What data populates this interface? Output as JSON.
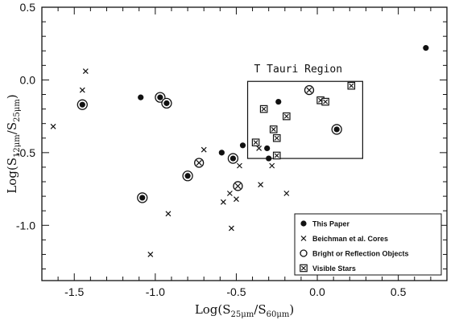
{
  "chart_data": {
    "type": "scatter",
    "title": "",
    "xlabel": "Log(S_25μm/S_60μm)",
    "ylabel": "Log(S_12μm/S_25μm)",
    "xlabel_parts": {
      "pre": "Log(S",
      "sub1": "25μm",
      "mid": "/S",
      "sub2": "60μm",
      "post": ")"
    },
    "ylabel_parts": {
      "pre": "Log(S",
      "sub1": "12μm",
      "mid": "/S",
      "sub2": "25μm",
      "post": ")"
    },
    "xlim": [
      -1.7,
      0.8
    ],
    "ylim": [
      -1.38,
      0.5
    ],
    "xticks": [
      {
        "value": -1.5,
        "label": "-1.5"
      },
      {
        "value": -1.0,
        "label": "-1.0"
      },
      {
        "value": -0.5,
        "label": "-0.5"
      },
      {
        "value": 0.0,
        "label": "0.0"
      },
      {
        "value": 0.5,
        "label": "0.5"
      }
    ],
    "yticks": [
      {
        "value": 0.5,
        "label": "0.5"
      },
      {
        "value": 0.0,
        "label": "0.0"
      },
      {
        "value": -0.5,
        "label": "-0.5"
      },
      {
        "value": -1.0,
        "label": "-1.0"
      }
    ],
    "grid": false,
    "legend_position": "bottom-right",
    "annotation": {
      "label": "T Tauri Region",
      "box": {
        "x0": -0.43,
        "x1": 0.28,
        "y0": -0.54,
        "y1": -0.01
      }
    },
    "series": [
      {
        "name": "This Paper",
        "marker": "filled-circle",
        "points": [
          {
            "x": 0.67,
            "y": 0.22,
            "ringed": false
          },
          {
            "x": -1.09,
            "y": -0.12,
            "ringed": false
          },
          {
            "x": -0.59,
            "y": -0.5,
            "ringed": false
          },
          {
            "x": -0.46,
            "y": -0.45,
            "ringed": false
          },
          {
            "x": -0.31,
            "y": -0.47,
            "ringed": false
          },
          {
            "x": -0.3,
            "y": -0.54,
            "ringed": false
          },
          {
            "x": -0.24,
            "y": -0.15,
            "ringed": false
          },
          {
            "x": -1.45,
            "y": -0.17,
            "ringed": true
          },
          {
            "x": -0.97,
            "y": -0.12,
            "ringed": true
          },
          {
            "x": -0.93,
            "y": -0.16,
            "ringed": true
          },
          {
            "x": -0.8,
            "y": -0.66,
            "ringed": true
          },
          {
            "x": -0.52,
            "y": -0.54,
            "ringed": true
          },
          {
            "x": -1.08,
            "y": -0.81,
            "ringed": true
          },
          {
            "x": 0.12,
            "y": -0.34,
            "ringed": true
          }
        ]
      },
      {
        "name": "Beichman et al. Cores",
        "marker": "x",
        "points": [
          {
            "x": -1.43,
            "y": 0.06
          },
          {
            "x": -1.45,
            "y": -0.07
          },
          {
            "x": -1.63,
            "y": -0.32
          },
          {
            "x": -0.7,
            "y": -0.48
          },
          {
            "x": -0.48,
            "y": -0.59
          },
          {
            "x": -0.58,
            "y": -0.84
          },
          {
            "x": -0.54,
            "y": -0.78
          },
          {
            "x": -0.5,
            "y": -0.82
          },
          {
            "x": -0.28,
            "y": -0.59
          },
          {
            "x": -0.35,
            "y": -0.72
          },
          {
            "x": -0.19,
            "y": -0.78
          },
          {
            "x": -0.92,
            "y": -0.92
          },
          {
            "x": -0.53,
            "y": -1.02
          },
          {
            "x": -1.03,
            "y": -1.2
          },
          {
            "x": -0.36,
            "y": -0.47
          }
        ]
      },
      {
        "name": "Bright or Reflection Objects",
        "marker": "open-circle-x",
        "points": [
          {
            "x": -0.73,
            "y": -0.57
          },
          {
            "x": -0.49,
            "y": -0.73
          },
          {
            "x": -0.05,
            "y": -0.07
          }
        ]
      },
      {
        "name": "Visible Stars",
        "marker": "square-x",
        "points": [
          {
            "x": -0.33,
            "y": -0.2
          },
          {
            "x": -0.38,
            "y": -0.43
          },
          {
            "x": -0.27,
            "y": -0.34
          },
          {
            "x": -0.25,
            "y": -0.4
          },
          {
            "x": -0.25,
            "y": -0.52
          },
          {
            "x": -0.19,
            "y": -0.25
          },
          {
            "x": 0.02,
            "y": -0.14
          },
          {
            "x": 0.05,
            "y": -0.15
          },
          {
            "x": 0.21,
            "y": -0.04
          }
        ]
      }
    ]
  }
}
